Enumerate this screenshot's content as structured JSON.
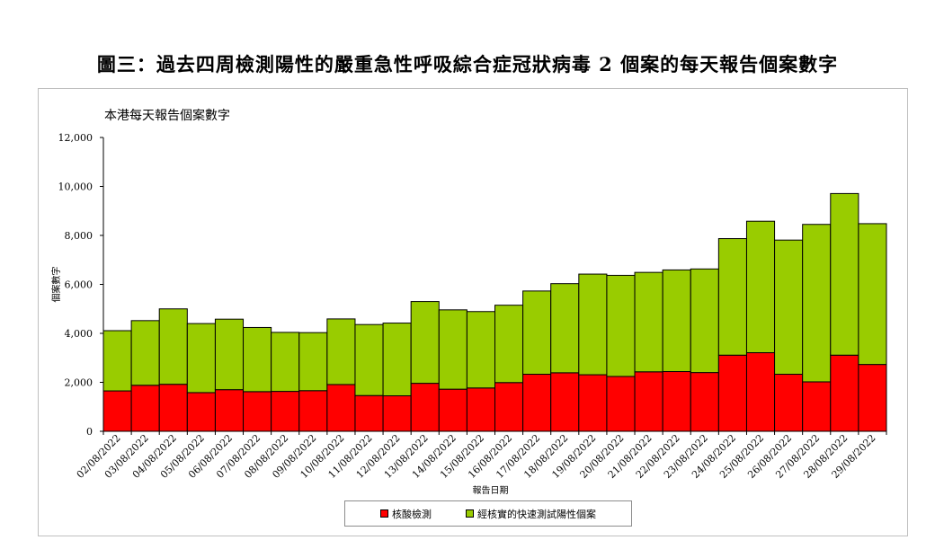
{
  "page_title": "圖三：過去四周檢測陽性的嚴重急性呼吸綜合症冠狀病毒 2 個案的每天報告個案數字",
  "chart_data": {
    "type": "bar",
    "stacked": true,
    "title": "本港每天報告個案數字",
    "xlabel": "報告日期",
    "ylabel": "個案數字",
    "ylim": [
      0,
      12000
    ],
    "yticks": [
      "0",
      "2,000",
      "4,000",
      "6,000",
      "8,000",
      "10,000",
      "12,000"
    ],
    "ytick_values": [
      0,
      2000,
      4000,
      6000,
      8000,
      10000,
      12000
    ],
    "grid": false,
    "legend_position": "bottom",
    "categories": [
      "02/08/2022",
      "03/08/2022",
      "04/08/2022",
      "05/08/2022",
      "06/08/2022",
      "07/08/2022",
      "08/08/2022",
      "09/08/2022",
      "10/08/2022",
      "11/08/2022",
      "12/08/2022",
      "13/08/2022",
      "14/08/2022",
      "15/08/2022",
      "16/08/2022",
      "17/08/2022",
      "18/08/2022",
      "19/08/2022",
      "20/08/2022",
      "21/08/2022",
      "22/08/2022",
      "23/08/2022",
      "24/08/2022",
      "25/08/2022",
      "26/08/2022",
      "27/08/2022",
      "28/08/2022",
      "29/08/2022"
    ],
    "series": [
      {
        "name": "核酸檢測",
        "color": "#ff0000",
        "values": [
          1650,
          1880,
          1920,
          1580,
          1700,
          1620,
          1630,
          1660,
          1910,
          1460,
          1450,
          1960,
          1720,
          1770,
          1990,
          2330,
          2390,
          2310,
          2240,
          2430,
          2440,
          2400,
          3110,
          3210,
          2330,
          2020,
          3110,
          2730
        ]
      },
      {
        "name": "經核實的快速測試陽性個案",
        "color": "#99cc00",
        "values": [
          2460,
          2640,
          3080,
          2820,
          2880,
          2620,
          2410,
          2370,
          2680,
          2900,
          2970,
          3340,
          3240,
          3120,
          3160,
          3400,
          3640,
          4110,
          4130,
          4060,
          4150,
          4230,
          4760,
          5370,
          5480,
          6430,
          6600,
          5750
        ]
      }
    ]
  }
}
